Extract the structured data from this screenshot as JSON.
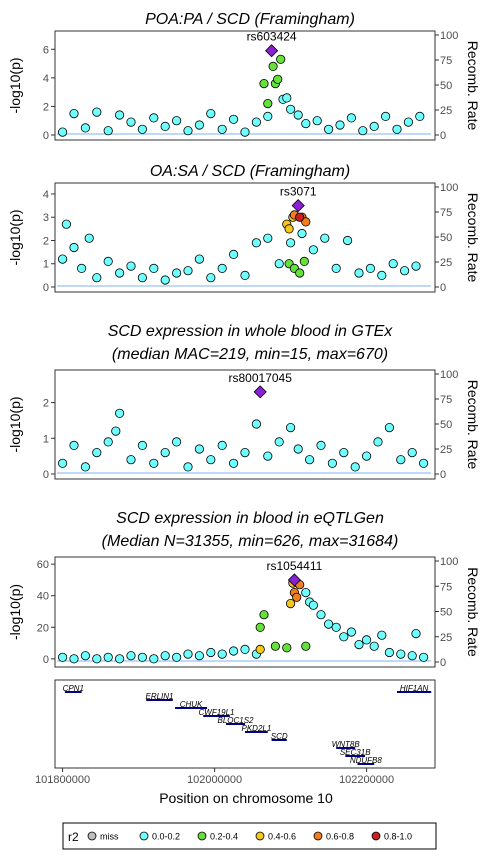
{
  "colors": {
    "miss": "#bebebe",
    "r2_0.0-0.2": "#6fffff",
    "r2_0.2-0.4": "#66e03a",
    "r2_0.4-0.6": "#f5c71a",
    "r2_0.6-0.8": "#f07f1e",
    "r2_0.8-1.0": "#c8201c",
    "lead": "#8a1fd6",
    "recomb_line": "#7fb6f0"
  },
  "chart_data": [
    {
      "type": "scatter",
      "title": "POA:PA / SCD (Framingham)",
      "ylabel": "-log10(p)",
      "y2label": "Recomb. Rate",
      "ylim": [
        0,
        7
      ],
      "yticks": [
        0,
        2,
        4,
        6
      ],
      "y2lim": [
        0,
        100
      ],
      "y2ticks": [
        0,
        25,
        50,
        75,
        100
      ],
      "xlim": [
        101790000,
        102290000
      ],
      "lead_snp": {
        "name": "rs603424",
        "x": 102075000,
        "y": 5.9
      },
      "series": [
        {
          "r2": "0.0-0.2",
          "points": [
            [
              101800000,
              0.2
            ],
            [
              101815000,
              1.5
            ],
            [
              101830000,
              0.5
            ],
            [
              101845000,
              1.6
            ],
            [
              101860000,
              0.3
            ],
            [
              101875000,
              1.4
            ],
            [
              101890000,
              0.9
            ],
            [
              101905000,
              0.4
            ],
            [
              101920000,
              1.2
            ],
            [
              101935000,
              0.6
            ],
            [
              101950000,
              1.0
            ],
            [
              101965000,
              0.3
            ],
            [
              101980000,
              0.7
            ],
            [
              101995000,
              1.5
            ],
            [
              102010000,
              0.4
            ],
            [
              102025000,
              1.1
            ],
            [
              102040000,
              0.2
            ],
            [
              102055000,
              0.9
            ],
            [
              102070000,
              1.3
            ],
            [
              102090000,
              2.5
            ],
            [
              102095000,
              2.6
            ],
            [
              102100000,
              1.8
            ],
            [
              102110000,
              1.4
            ],
            [
              102120000,
              0.8
            ],
            [
              102135000,
              1.0
            ],
            [
              102150000,
              0.4
            ],
            [
              102165000,
              0.7
            ],
            [
              102180000,
              1.2
            ],
            [
              102195000,
              0.3
            ],
            [
              102210000,
              0.6
            ],
            [
              102225000,
              1.3
            ],
            [
              102240000,
              0.4
            ],
            [
              102255000,
              0.9
            ],
            [
              102270000,
              1.3
            ]
          ]
        },
        {
          "r2": "0.2-0.4",
          "points": [
            [
              102065000,
              3.6
            ],
            [
              102070000,
              2.2
            ],
            [
              102077000,
              4.8
            ],
            [
              102080000,
              3.6
            ],
            [
              102083000,
              3.9
            ],
            [
              102087000,
              5.3
            ]
          ]
        }
      ]
    },
    {
      "type": "scatter",
      "title": "OA:SA / SCD (Framingham)",
      "ylabel": "-log10(p)",
      "y2label": "Recomb. Rate",
      "ylim": [
        0,
        4.3
      ],
      "yticks": [
        0,
        1,
        2,
        3,
        4
      ],
      "y2lim": [
        0,
        100
      ],
      "y2ticks": [
        0,
        25,
        50,
        75,
        100
      ],
      "xlim": [
        101790000,
        102290000
      ],
      "lead_snp": {
        "name": "rs3071",
        "x": 102110000,
        "y": 3.5
      },
      "series": [
        {
          "r2": "0.0-0.2",
          "points": [
            [
              101800000,
              1.2
            ],
            [
              101805000,
              2.7
            ],
            [
              101815000,
              1.7
            ],
            [
              101825000,
              0.8
            ],
            [
              101835000,
              2.1
            ],
            [
              101845000,
              0.4
            ],
            [
              101860000,
              1.1
            ],
            [
              101875000,
              0.6
            ],
            [
              101890000,
              0.9
            ],
            [
              101905000,
              0.4
            ],
            [
              101920000,
              0.8
            ],
            [
              101935000,
              0.3
            ],
            [
              101950000,
              0.6
            ],
            [
              101965000,
              0.7
            ],
            [
              101980000,
              1.2
            ],
            [
              101995000,
              0.4
            ],
            [
              102010000,
              0.8
            ],
            [
              102025000,
              1.4
            ],
            [
              102040000,
              0.5
            ],
            [
              102055000,
              1.9
            ],
            [
              102070000,
              2.1
            ],
            [
              102085000,
              1.0
            ],
            [
              102100000,
              1.9
            ],
            [
              102115000,
              2.3
            ],
            [
              102130000,
              1.6
            ],
            [
              102145000,
              2.1
            ],
            [
              102160000,
              0.8
            ],
            [
              102175000,
              2.0
            ],
            [
              102190000,
              0.6
            ],
            [
              102205000,
              0.8
            ],
            [
              102220000,
              0.5
            ],
            [
              102235000,
              1.0
            ],
            [
              102250000,
              0.7
            ],
            [
              102265000,
              0.9
            ]
          ]
        },
        {
          "r2": "0.2-0.4",
          "points": [
            [
              102098000,
              1.0
            ],
            [
              102105000,
              0.8
            ],
            [
              102112000,
              0.6
            ],
            [
              102118000,
              1.1
            ]
          ]
        },
        {
          "r2": "0.4-0.6",
          "points": [
            [
              102095000,
              2.7
            ],
            [
              102098000,
              2.5
            ],
            [
              102103000,
              3.0
            ]
          ]
        },
        {
          "r2": "0.6-0.8",
          "points": [
            [
              102105000,
              3.1
            ],
            [
              102115000,
              3.0
            ],
            [
              102120000,
              2.8
            ]
          ]
        },
        {
          "r2": "0.8-1.0",
          "points": [
            [
              102112000,
              3.0
            ]
          ]
        }
      ]
    },
    {
      "type": "scatter",
      "title_lines": [
        "SCD expression in whole blood in GTEx",
        "(median MAC=219, min=15, max=670)"
      ],
      "ylabel": "-log10(p)",
      "y2label": "Recomb. Rate",
      "ylim": [
        0,
        2.8
      ],
      "yticks": [
        0,
        1,
        2
      ],
      "y2lim": [
        0,
        100
      ],
      "y2ticks": [
        0,
        25,
        50,
        75,
        100
      ],
      "xlim": [
        101790000,
        102290000
      ],
      "lead_snp": {
        "name": "rs80017045",
        "x": 102060000,
        "y": 2.3
      },
      "series": [
        {
          "r2": "0.0-0.2",
          "points": [
            [
              101800000,
              0.3
            ],
            [
              101815000,
              0.8
            ],
            [
              101830000,
              0.2
            ],
            [
              101845000,
              0.6
            ],
            [
              101860000,
              0.9
            ],
            [
              101870000,
              1.2
            ],
            [
              101875000,
              1.7
            ],
            [
              101890000,
              0.4
            ],
            [
              101905000,
              0.8
            ],
            [
              101920000,
              0.3
            ],
            [
              101935000,
              0.6
            ],
            [
              101950000,
              0.9
            ],
            [
              101965000,
              0.2
            ],
            [
              101980000,
              0.7
            ],
            [
              101995000,
              0.4
            ],
            [
              102010000,
              0.8
            ],
            [
              102025000,
              0.3
            ],
            [
              102040000,
              0.6
            ],
            [
              102055000,
              1.4
            ],
            [
              102070000,
              0.5
            ],
            [
              102085000,
              0.9
            ],
            [
              102100000,
              1.3
            ],
            [
              102110000,
              0.7
            ],
            [
              102125000,
              0.4
            ],
            [
              102140000,
              0.8
            ],
            [
              102155000,
              0.3
            ],
            [
              102170000,
              0.6
            ],
            [
              102185000,
              0.2
            ],
            [
              102200000,
              0.5
            ],
            [
              102215000,
              0.9
            ],
            [
              102230000,
              1.3
            ],
            [
              102245000,
              0.4
            ],
            [
              102260000,
              0.6
            ],
            [
              102275000,
              0.3
            ]
          ]
        }
      ]
    },
    {
      "type": "scatter",
      "title_lines": [
        "SCD expression in blood in eQTLGen",
        "(Median N=31355, min=626, max=31684)"
      ],
      "ylabel": "-log10(p)",
      "y2label": "Recomb. Rate",
      "ylim": [
        -2,
        62
      ],
      "yticks": [
        0,
        20,
        40,
        60
      ],
      "y2lim": [
        0,
        100
      ],
      "y2ticks": [
        0,
        25,
        50,
        75,
        100
      ],
      "xlim": [
        101790000,
        102290000
      ],
      "lead_snp": {
        "name": "rs1054411",
        "x": 102105000,
        "y": 50
      },
      "series": [
        {
          "r2": "0.0-0.2",
          "points": [
            [
              101800000,
              1
            ],
            [
              101815000,
              0
            ],
            [
              101830000,
              2
            ],
            [
              101845000,
              0
            ],
            [
              101860000,
              1
            ],
            [
              101875000,
              0
            ],
            [
              101890000,
              2
            ],
            [
              101905000,
              1
            ],
            [
              101920000,
              0
            ],
            [
              101935000,
              2
            ],
            [
              101950000,
              1
            ],
            [
              101965000,
              3
            ],
            [
              101980000,
              2
            ],
            [
              101995000,
              4
            ],
            [
              102010000,
              3
            ],
            [
              102025000,
              5
            ],
            [
              102040000,
              6
            ],
            [
              102055000,
              3
            ],
            [
              102120000,
              42
            ],
            [
              102125000,
              36
            ],
            [
              102130000,
              34
            ],
            [
              102140000,
              28
            ],
            [
              102150000,
              22
            ],
            [
              102160000,
              20
            ],
            [
              102170000,
              14
            ],
            [
              102180000,
              17
            ],
            [
              102190000,
              9
            ],
            [
              102200000,
              12
            ],
            [
              102210000,
              8
            ],
            [
              102220000,
              15
            ],
            [
              102230000,
              4
            ],
            [
              102245000,
              3
            ],
            [
              102260000,
              2
            ],
            [
              102265000,
              16
            ],
            [
              102275000,
              1
            ]
          ]
        },
        {
          "r2": "0.2-0.4",
          "points": [
            [
              102060000,
              20
            ],
            [
              102065000,
              28
            ],
            [
              102080000,
              8
            ],
            [
              102095000,
              7
            ],
            [
              102120000,
              8
            ]
          ]
        },
        {
          "r2": "0.4-0.6",
          "points": [
            [
              102060000,
              6
            ],
            [
              102100000,
              35
            ],
            [
              102103000,
              48
            ]
          ]
        },
        {
          "r2": "0.6-0.8",
          "points": [
            [
              102105000,
              42
            ],
            [
              102108000,
              39
            ],
            [
              102112000,
              47
            ]
          ]
        }
      ]
    },
    {
      "type": "gene_track",
      "xlabel": "Position on chromosome 10",
      "xticks": [
        101800000,
        102000000,
        102200000
      ],
      "xlim": [
        101790000,
        102290000
      ],
      "genes": [
        {
          "name": "CPN1",
          "start": 101803000,
          "end": 101825000,
          "row": 0
        },
        {
          "name": "ERLIN1",
          "start": 101910000,
          "end": 101945000,
          "row": 1
        },
        {
          "name": "CHUK",
          "start": 101948000,
          "end": 101990000,
          "row": 2
        },
        {
          "name": "CWF19L1",
          "start": 101985000,
          "end": 102020000,
          "row": 3
        },
        {
          "name": "BLOC1S2",
          "start": 102015000,
          "end": 102040000,
          "row": 4
        },
        {
          "name": "PKD2L1",
          "start": 102040000,
          "end": 102070000,
          "row": 5
        },
        {
          "name": "SCD",
          "start": 102075000,
          "end": 102095000,
          "row": 6
        },
        {
          "name": "WNT8B",
          "start": 102160000,
          "end": 102185000,
          "row": 7
        },
        {
          "name": "SEC31B",
          "start": 102172000,
          "end": 102198000,
          "row": 8
        },
        {
          "name": "NDUFB8",
          "start": 102188000,
          "end": 102210000,
          "row": 9
        },
        {
          "name": "HIF1AN",
          "start": 102240000,
          "end": 102285000,
          "row": 0
        }
      ]
    }
  ],
  "legend": {
    "title": "r2",
    "items": [
      {
        "label": "miss",
        "color": "#bebebe"
      },
      {
        "label": "0.0-0.2",
        "color": "#6fffff"
      },
      {
        "label": "0.2-0.4",
        "color": "#66e03a"
      },
      {
        "label": "0.4-0.6",
        "color": "#f5c71a"
      },
      {
        "label": "0.6-0.8",
        "color": "#f07f1e"
      },
      {
        "label": "0.8-1.0",
        "color": "#c8201c"
      }
    ]
  }
}
